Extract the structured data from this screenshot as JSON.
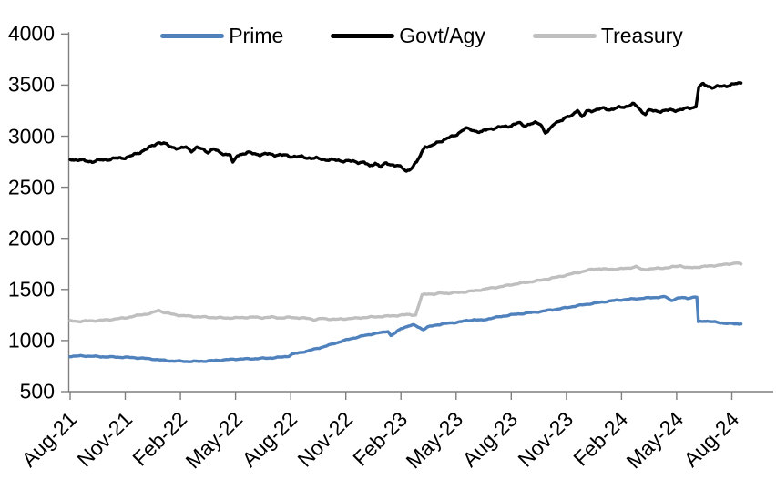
{
  "chart_data": {
    "type": "line",
    "title": "",
    "xlabel": "",
    "ylabel": "",
    "ylim": [
      500,
      4000
    ],
    "y_tick_interval": 500,
    "grid": false,
    "legend_position": "top-center",
    "axis_color": "#7f7f7f",
    "text_color": "#000000",
    "x_unit": "months-since-Aug-2021",
    "x_tick_interval_months": 3,
    "x_tick_labels": [
      "Aug-21",
      "Nov-21",
      "Feb-22",
      "May-22",
      "Aug-22",
      "Nov-22",
      "Feb-23",
      "May-23",
      "Aug-23",
      "Nov-23",
      "Feb-24",
      "May-24",
      "Aug-24"
    ],
    "y_tick_labels": [
      "4000",
      "3500",
      "3000",
      "2500",
      "2000",
      "1500",
      "1000",
      "500"
    ],
    "y_tick_values": [
      4000,
      3500,
      3000,
      2500,
      2000,
      1500,
      1000,
      500
    ],
    "series": [
      {
        "name": "Prime",
        "color": "#4F81BD",
        "line_width": 3.4,
        "wiggle": 6,
        "points": [
          [
            0,
            845
          ],
          [
            0.7,
            850
          ],
          [
            1.5,
            843
          ],
          [
            2.5,
            838
          ],
          [
            3,
            836
          ],
          [
            3.5,
            832
          ],
          [
            4,
            826
          ],
          [
            4.5,
            818
          ],
          [
            5,
            808
          ],
          [
            5.5,
            800
          ],
          [
            6,
            798
          ],
          [
            6.5,
            795
          ],
          [
            7,
            796
          ],
          [
            7.5,
            800
          ],
          [
            8,
            806
          ],
          [
            8.5,
            812
          ],
          [
            9,
            818
          ],
          [
            9.5,
            820
          ],
          [
            10,
            822
          ],
          [
            10.5,
            826
          ],
          [
            11,
            830
          ],
          [
            11.5,
            838
          ],
          [
            11.9,
            848
          ],
          [
            12.1,
            868
          ],
          [
            12.5,
            880
          ],
          [
            13,
            902
          ],
          [
            13.5,
            925
          ],
          [
            14,
            950
          ],
          [
            14.5,
            978
          ],
          [
            15,
            1005
          ],
          [
            15.5,
            1028
          ],
          [
            16,
            1048
          ],
          [
            16.5,
            1066
          ],
          [
            17,
            1080
          ],
          [
            17.3,
            1092
          ],
          [
            17.45,
            1048
          ],
          [
            17.7,
            1075
          ],
          [
            18,
            1118
          ],
          [
            18.4,
            1142
          ],
          [
            18.7,
            1152
          ],
          [
            19,
            1128
          ],
          [
            19.2,
            1108
          ],
          [
            19.5,
            1135
          ],
          [
            20,
            1155
          ],
          [
            20.5,
            1168
          ],
          [
            21,
            1178
          ],
          [
            21.5,
            1192
          ],
          [
            22,
            1205
          ],
          [
            22.4,
            1198
          ],
          [
            22.8,
            1215
          ],
          [
            23.2,
            1228
          ],
          [
            23.6,
            1240
          ],
          [
            24,
            1252
          ],
          [
            24.5,
            1262
          ],
          [
            25,
            1272
          ],
          [
            25.5,
            1282
          ],
          [
            26,
            1295
          ],
          [
            26.5,
            1308
          ],
          [
            27,
            1322
          ],
          [
            27.5,
            1338
          ],
          [
            28,
            1352
          ],
          [
            28.5,
            1365
          ],
          [
            29,
            1378
          ],
          [
            29.5,
            1390
          ],
          [
            30,
            1398
          ],
          [
            30.5,
            1406
          ],
          [
            31,
            1412
          ],
          [
            31.5,
            1418
          ],
          [
            32,
            1424
          ],
          [
            32.4,
            1428
          ],
          [
            32.7,
            1392
          ],
          [
            33,
            1412
          ],
          [
            33.3,
            1420
          ],
          [
            33.6,
            1415
          ],
          [
            34,
            1426
          ],
          [
            34.1,
            1422
          ],
          [
            34.18,
            1182
          ],
          [
            34.5,
            1192
          ],
          [
            34.8,
            1188
          ],
          [
            35.2,
            1178
          ],
          [
            35.6,
            1170
          ],
          [
            36,
            1165
          ],
          [
            36.5,
            1162
          ]
        ]
      },
      {
        "name": "Govt/Agy",
        "color": "#000000",
        "line_width": 3.4,
        "wiggle": 15,
        "points": [
          [
            0,
            2775
          ],
          [
            0.4,
            2768
          ],
          [
            0.8,
            2758
          ],
          [
            1.2,
            2752
          ],
          [
            1.6,
            2762
          ],
          [
            2,
            2772
          ],
          [
            2.4,
            2780
          ],
          [
            2.8,
            2786
          ],
          [
            3.2,
            2798
          ],
          [
            3.6,
            2825
          ],
          [
            4,
            2862
          ],
          [
            4.4,
            2895
          ],
          [
            4.8,
            2940
          ],
          [
            5.1,
            2928
          ],
          [
            5.4,
            2900
          ],
          [
            5.7,
            2888
          ],
          [
            6,
            2878
          ],
          [
            6.3,
            2893
          ],
          [
            6.6,
            2858
          ],
          [
            6.9,
            2888
          ],
          [
            7.2,
            2870
          ],
          [
            7.5,
            2846
          ],
          [
            7.8,
            2876
          ],
          [
            8.1,
            2840
          ],
          [
            8.4,
            2826
          ],
          [
            8.7,
            2820
          ],
          [
            8.85,
            2732
          ],
          [
            9.1,
            2812
          ],
          [
            9.4,
            2830
          ],
          [
            9.7,
            2836
          ],
          [
            10,
            2828
          ],
          [
            10.4,
            2820
          ],
          [
            10.8,
            2824
          ],
          [
            11.2,
            2818
          ],
          [
            11.6,
            2812
          ],
          [
            12,
            2804
          ],
          [
            12.4,
            2798
          ],
          [
            12.8,
            2792
          ],
          [
            13.2,
            2785
          ],
          [
            13.6,
            2776
          ],
          [
            14,
            2770
          ],
          [
            14.4,
            2764
          ],
          [
            14.8,
            2760
          ],
          [
            15.2,
            2754
          ],
          [
            15.6,
            2748
          ],
          [
            16,
            2742
          ],
          [
            16.3,
            2702
          ],
          [
            16.6,
            2740
          ],
          [
            16.9,
            2700
          ],
          [
            17.2,
            2732
          ],
          [
            17.5,
            2722
          ],
          [
            17.8,
            2712
          ],
          [
            18.1,
            2682
          ],
          [
            18.3,
            2658
          ],
          [
            18.6,
            2694
          ],
          [
            18.85,
            2742
          ],
          [
            19.05,
            2808
          ],
          [
            19.3,
            2906
          ],
          [
            19.55,
            2896
          ],
          [
            19.8,
            2916
          ],
          [
            20.1,
            2948
          ],
          [
            20.5,
            2978
          ],
          [
            20.9,
            3000
          ],
          [
            21.2,
            3042
          ],
          [
            21.5,
            3076
          ],
          [
            21.8,
            3062
          ],
          [
            22.1,
            3050
          ],
          [
            22.4,
            3040
          ],
          [
            22.7,
            3066
          ],
          [
            23,
            3078
          ],
          [
            23.5,
            3088
          ],
          [
            24,
            3105
          ],
          [
            24.4,
            3128
          ],
          [
            24.7,
            3106
          ],
          [
            25,
            3118
          ],
          [
            25.3,
            3126
          ],
          [
            25.6,
            3122
          ],
          [
            25.85,
            3034
          ],
          [
            26.1,
            3062
          ],
          [
            26.4,
            3132
          ],
          [
            26.7,
            3158
          ],
          [
            27,
            3180
          ],
          [
            27.3,
            3200
          ],
          [
            27.6,
            3265
          ],
          [
            27.85,
            3182
          ],
          [
            28.1,
            3242
          ],
          [
            28.5,
            3256
          ],
          [
            29,
            3270
          ],
          [
            29.4,
            3262
          ],
          [
            29.8,
            3276
          ],
          [
            30.2,
            3290
          ],
          [
            30.6,
            3315
          ],
          [
            30.9,
            3282
          ],
          [
            31.1,
            3240
          ],
          [
            31.3,
            3222
          ],
          [
            31.5,
            3252
          ],
          [
            31.8,
            3244
          ],
          [
            32.2,
            3248
          ],
          [
            32.6,
            3252
          ],
          [
            33,
            3256
          ],
          [
            33.4,
            3264
          ],
          [
            33.8,
            3280
          ],
          [
            34.05,
            3290
          ],
          [
            34.2,
            3478
          ],
          [
            34.45,
            3508
          ],
          [
            34.7,
            3490
          ],
          [
            35,
            3478
          ],
          [
            35.4,
            3486
          ],
          [
            35.8,
            3498
          ],
          [
            36.2,
            3510
          ],
          [
            36.5,
            3520
          ]
        ]
      },
      {
        "name": "Treasury",
        "color": "#BFBFBF",
        "line_width": 3.4,
        "wiggle": 7,
        "points": [
          [
            0,
            1192
          ],
          [
            0.5,
            1188
          ],
          [
            1,
            1192
          ],
          [
            1.5,
            1196
          ],
          [
            2,
            1202
          ],
          [
            2.5,
            1212
          ],
          [
            3,
            1222
          ],
          [
            3.5,
            1240
          ],
          [
            4,
            1256
          ],
          [
            4.4,
            1266
          ],
          [
            4.8,
            1296
          ],
          [
            5.2,
            1272
          ],
          [
            5.6,
            1256
          ],
          [
            6,
            1246
          ],
          [
            6.5,
            1238
          ],
          [
            7,
            1233
          ],
          [
            7.5,
            1228
          ],
          [
            8,
            1224
          ],
          [
            8.5,
            1221
          ],
          [
            9,
            1222
          ],
          [
            9.5,
            1226
          ],
          [
            10,
            1229
          ],
          [
            10.5,
            1224
          ],
          [
            11,
            1229
          ],
          [
            11.5,
            1221
          ],
          [
            12,
            1228
          ],
          [
            12.5,
            1221
          ],
          [
            13,
            1216
          ],
          [
            13.3,
            1203
          ],
          [
            13.7,
            1216
          ],
          [
            14,
            1211
          ],
          [
            14.5,
            1207
          ],
          [
            15,
            1214
          ],
          [
            15.5,
            1218
          ],
          [
            16,
            1226
          ],
          [
            16.5,
            1231
          ],
          [
            17,
            1237
          ],
          [
            17.5,
            1241
          ],
          [
            18,
            1249
          ],
          [
            18.4,
            1254
          ],
          [
            18.8,
            1251
          ],
          [
            19.15,
            1446
          ],
          [
            19.5,
            1460
          ],
          [
            19.8,
            1452
          ],
          [
            20.2,
            1466
          ],
          [
            20.6,
            1462
          ],
          [
            21,
            1470
          ],
          [
            21.5,
            1477
          ],
          [
            22,
            1487
          ],
          [
            22.5,
            1501
          ],
          [
            23,
            1517
          ],
          [
            23.5,
            1529
          ],
          [
            24,
            1547
          ],
          [
            24.5,
            1561
          ],
          [
            25,
            1574
          ],
          [
            25.5,
            1587
          ],
          [
            26,
            1604
          ],
          [
            26.5,
            1621
          ],
          [
            27,
            1641
          ],
          [
            27.5,
            1661
          ],
          [
            28,
            1681
          ],
          [
            28.4,
            1698
          ],
          [
            28.8,
            1704
          ],
          [
            29.2,
            1697
          ],
          [
            29.6,
            1700
          ],
          [
            30,
            1703
          ],
          [
            30.4,
            1710
          ],
          [
            30.8,
            1724
          ],
          [
            31.1,
            1694
          ],
          [
            31.5,
            1701
          ],
          [
            32,
            1707
          ],
          [
            32.5,
            1713
          ],
          [
            32.9,
            1724
          ],
          [
            33.2,
            1734
          ],
          [
            33.6,
            1711
          ],
          [
            34,
            1717
          ],
          [
            34.5,
            1725
          ],
          [
            35,
            1734
          ],
          [
            35.5,
            1741
          ],
          [
            36,
            1754
          ],
          [
            36.25,
            1760
          ],
          [
            36.5,
            1750
          ]
        ]
      }
    ]
  }
}
